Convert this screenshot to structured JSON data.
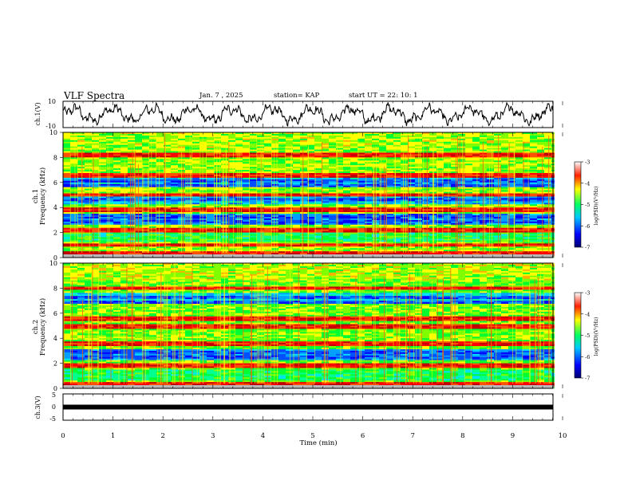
{
  "header": {
    "title": "VLF Spectra",
    "date": "Jan. 7 , 2025",
    "station": "station= KAP",
    "start_ut": "start UT =  22: 10: 1"
  },
  "chart_data": [
    {
      "type": "line",
      "panel": "ch1-waveform",
      "ylabel": "ch.1(V)",
      "ylim": [
        -10,
        10
      ],
      "y_ticks": [
        "10",
        "-10"
      ],
      "x_range_min": [
        0,
        9.83
      ],
      "amplitude_description": "noise waveform oscillating roughly between -8 and +8 V"
    },
    {
      "type": "heatmap",
      "panel": "ch1-spectrogram",
      "ylabel": "ch.1\nFrequency (kHz)",
      "ylim": [
        0,
        10
      ],
      "y_ticks": [
        "0",
        "2",
        "4",
        "6",
        "8",
        "10"
      ],
      "colorbar": {
        "label": "log(PSD)(V²/Hz)",
        "range": [
          -7,
          -3
        ],
        "ticks": [
          "-3",
          "-4",
          "-5",
          "-6",
          "-7"
        ]
      },
      "strong_bands_khz": [
        0.3,
        1.0,
        2.2,
        3.8,
        5.0,
        6.6,
        8.2
      ],
      "weak_bands_khz": [
        2.9,
        3.3,
        4.6,
        5.7,
        6.1
      ]
    },
    {
      "type": "heatmap",
      "panel": "ch2-spectrogram",
      "ylabel": "ch.2\nFrequency (kHz)",
      "ylim": [
        0,
        10
      ],
      "y_ticks": [
        "0",
        "2",
        "4",
        "6",
        "8",
        "10"
      ],
      "colorbar": {
        "label": "log(PSD)(V²/Hz)",
        "range": [
          -7,
          -3
        ],
        "ticks": [
          "-3",
          "-4",
          "-5",
          "-6",
          "-7"
        ]
      },
      "strong_bands_khz": [
        0.3,
        1.8,
        3.6,
        4.9,
        5.6,
        8.0
      ],
      "weak_bands_khz": [
        2.5,
        2.9,
        6.9,
        7.2
      ]
    },
    {
      "type": "line",
      "panel": "ch3-waveform",
      "ylabel": "ch.3(V)",
      "ylim": [
        -5,
        5
      ],
      "y_ticks": [
        "5",
        "0",
        "-5"
      ],
      "level_v": 0
    }
  ],
  "x_axis": {
    "label": "Time (min)",
    "xlim": [
      0,
      10
    ],
    "ticks": [
      "0",
      "1",
      "2",
      "3",
      "4",
      "5",
      "6",
      "7",
      "8",
      "9",
      "10"
    ]
  }
}
